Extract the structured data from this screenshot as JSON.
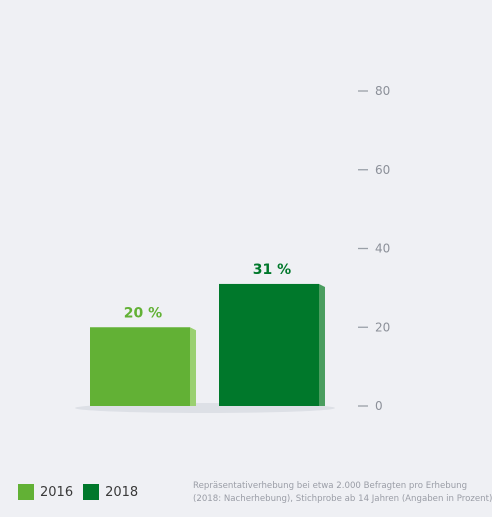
{
  "chart_data": {
    "type": "bar",
    "categories": [
      "2016",
      "2018"
    ],
    "values": [
      20,
      31
    ],
    "value_labels": [
      "20 %",
      "31 %"
    ],
    "ylim": [
      0,
      80
    ],
    "yticks": [
      0,
      20,
      40,
      60,
      80
    ],
    "grid": false,
    "legend_position": "bottom-left",
    "colors": [
      "#62b135",
      "#00782b"
    ]
  },
  "legend": {
    "items": [
      {
        "label": "2016",
        "color": "#62b135"
      },
      {
        "label": "2018",
        "color": "#00782b"
      }
    ]
  },
  "footnote": {
    "line1": "Repräsentativerhebung bei etwa 2.000 Befragten pro Erhebung",
    "line2": "(2018: Nacherhebung), Stichprobe ab 14 Jahren (Angaben in Prozent)"
  }
}
